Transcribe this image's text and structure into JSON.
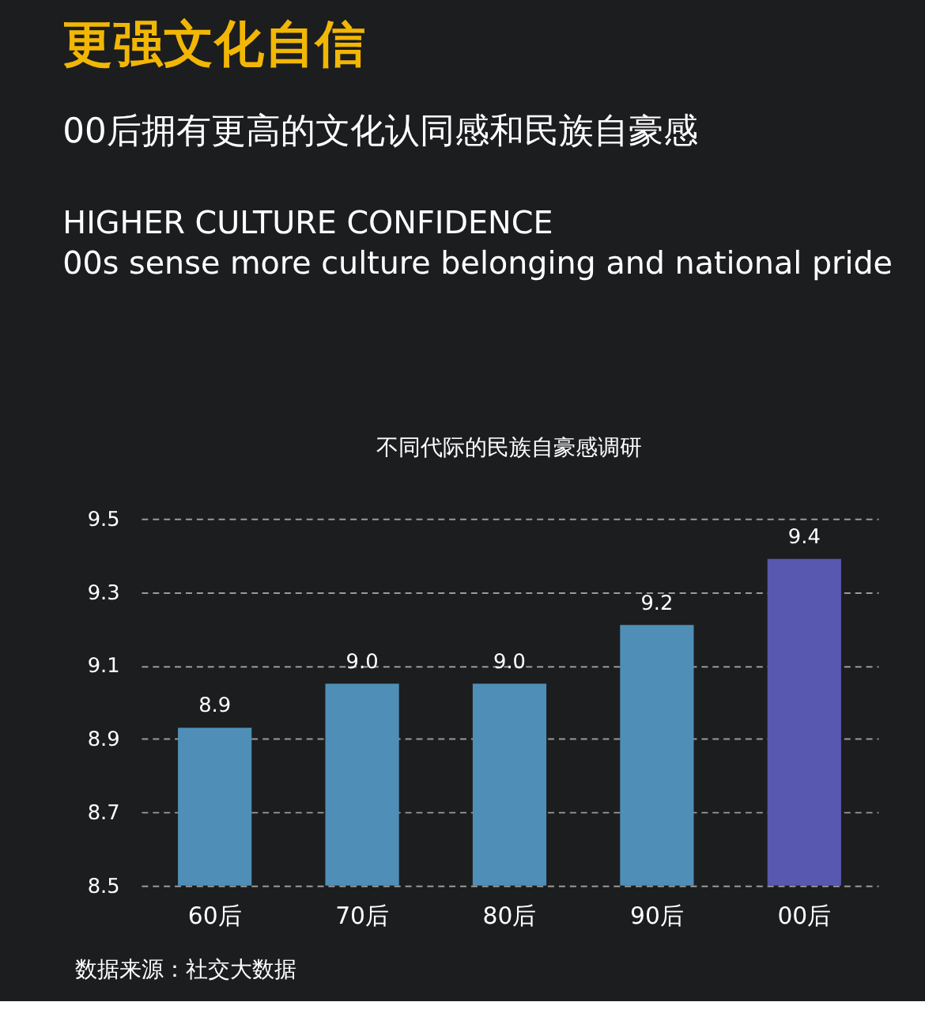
{
  "chart_data": {
    "type": "bar",
    "title": "更强文化自信",
    "subtitle": "00后拥有更高的文化认同感和民族自豪感",
    "annotations": [
      "HIGHER CULTURE CONFIDENCE",
      "00s sense more culture belonging and national pride",
      "不同代际的民族自豪感调研",
      "数据来源：社交大数据"
    ],
    "categories": [
      "60后",
      "70后",
      "80后",
      "90后",
      "00后"
    ],
    "values": [
      8.93,
      9.05,
      9.05,
      9.21,
      9.39
    ],
    "value_labels": [
      "8.9",
      "9.0",
      "9.0",
      "9.2",
      "9.4"
    ],
    "colors": [
      "#4f8fb7",
      "#4f8fb7",
      "#4f8fb7",
      "#4f8fb7",
      "#5858b0"
    ],
    "ylim": [
      8.5,
      9.5
    ],
    "yticks": [
      8.5,
      8.7,
      8.9,
      9.1,
      9.3,
      9.5
    ],
    "grid": "y"
  }
}
